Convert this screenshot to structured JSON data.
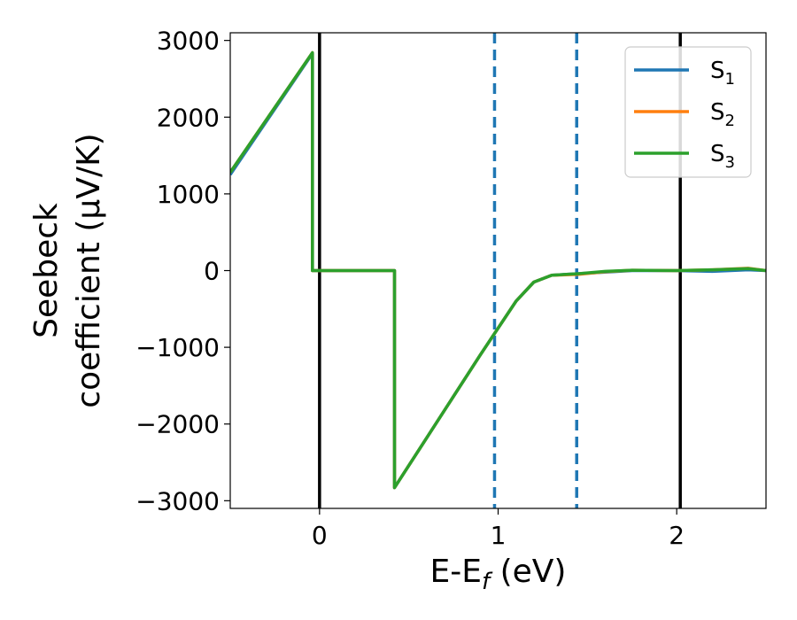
{
  "chart_data": {
    "type": "line",
    "xlabel_parts": {
      "base": "E-E",
      "sub": "f",
      "unit": " (eV)"
    },
    "ylabel_lines": [
      "Seebeck",
      "coefficient  (μV/K)"
    ],
    "xlim": [
      -0.5,
      2.5
    ],
    "ylim": [
      -3100,
      3100
    ],
    "xticks": [
      0,
      1,
      2
    ],
    "xtick_labels": [
      "0",
      "1",
      "2"
    ],
    "yticks": [
      3000,
      2000,
      1000,
      0,
      -1000,
      -2000,
      -3000
    ],
    "ytick_labels": [
      "3000",
      "2000",
      "1000",
      "0",
      "−1000",
      "−2000",
      "−3000"
    ],
    "legend_position": "top-right",
    "vertical_lines": [
      {
        "x": 0.0,
        "style": "solid",
        "color": "#000000"
      },
      {
        "x": 2.02,
        "style": "solid",
        "color": "#000000"
      },
      {
        "x": 0.98,
        "style": "dashed",
        "color": "#1f77b4"
      },
      {
        "x": 1.44,
        "style": "dashed",
        "color": "#1f77b4"
      }
    ],
    "series": [
      {
        "name": "S",
        "sub": "1",
        "color": "#1f77b4",
        "x": [
          -0.5,
          -0.04,
          -0.04,
          0.42,
          0.42,
          0.9,
          1.1,
          1.2,
          1.3,
          1.45,
          1.6,
          1.75,
          2.0,
          2.2,
          2.4,
          2.5
        ],
        "y": [
          1250,
          2830,
          0,
          0,
          -2830,
          -1100,
          -400,
          -150,
          -60,
          -40,
          -20,
          0,
          0,
          -10,
          10,
          0
        ]
      },
      {
        "name": "S",
        "sub": "2",
        "color": "#ff7f0e",
        "x": [
          -0.5,
          -0.04,
          -0.04,
          0.42,
          0.42,
          0.9,
          1.1,
          1.2,
          1.3,
          1.45,
          1.6,
          1.75,
          2.0,
          2.2,
          2.4,
          2.5
        ],
        "y": [
          1280,
          2840,
          0,
          0,
          -2830,
          -1100,
          -400,
          -150,
          -60,
          -50,
          -15,
          5,
          0,
          10,
          30,
          0
        ]
      },
      {
        "name": "S",
        "sub": "3",
        "color": "#2ca02c",
        "x": [
          -0.5,
          -0.04,
          -0.04,
          0.42,
          0.42,
          0.9,
          1.1,
          1.2,
          1.3,
          1.45,
          1.6,
          1.75,
          2.0,
          2.2,
          2.4,
          2.5
        ],
        "y": [
          1280,
          2840,
          0,
          0,
          -2830,
          -1100,
          -400,
          -150,
          -60,
          -40,
          -10,
          5,
          0,
          10,
          25,
          0
        ]
      }
    ]
  }
}
